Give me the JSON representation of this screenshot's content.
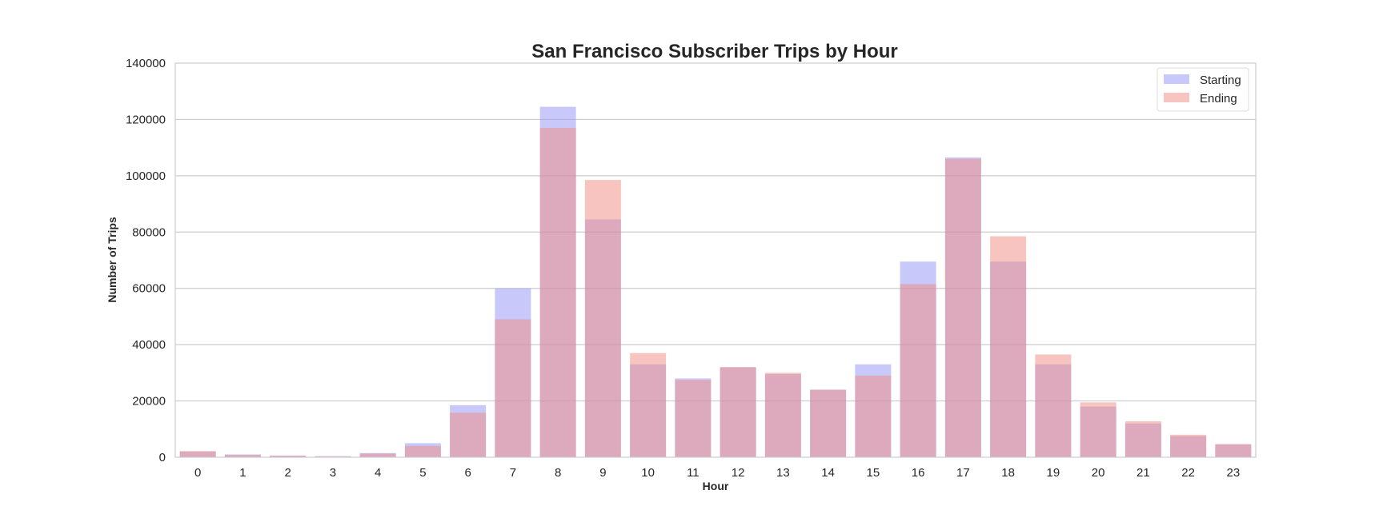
{
  "chart_data": {
    "type": "bar",
    "title": "San Francisco Subscriber Trips by Hour",
    "xlabel": "Hour",
    "ylabel": "Number of Trips",
    "ylim": [
      0,
      140000
    ],
    "yticks": [
      0,
      20000,
      40000,
      60000,
      80000,
      100000,
      120000,
      140000
    ],
    "ytick_labels": [
      "0",
      "20000",
      "40000",
      "60000",
      "80000",
      "100000",
      "120000",
      "140000"
    ],
    "categories": [
      "0",
      "1",
      "2",
      "3",
      "4",
      "5",
      "6",
      "7",
      "8",
      "9",
      "10",
      "11",
      "12",
      "13",
      "14",
      "15",
      "16",
      "17",
      "18",
      "19",
      "20",
      "21",
      "22",
      "23"
    ],
    "series": [
      {
        "name": "Starting",
        "color": "#9a9af5",
        "opacity": 0.55,
        "values": [
          2000,
          1000,
          600,
          400,
          1500,
          5000,
          18500,
          60000,
          124500,
          84500,
          33000,
          28000,
          32000,
          29500,
          24000,
          33000,
          69500,
          106500,
          69500,
          33000,
          18000,
          12000,
          7500,
          4500
        ]
      },
      {
        "name": "Ending",
        "color": "#f08a80",
        "opacity": 0.5,
        "values": [
          2200,
          800,
          500,
          300,
          1300,
          4000,
          15800,
          49000,
          117000,
          98500,
          37000,
          27500,
          32000,
          30000,
          24000,
          29000,
          61500,
          106000,
          78500,
          36500,
          19500,
          12800,
          8000,
          4700
        ]
      }
    ],
    "grid": "y",
    "legend": "top-right"
  }
}
